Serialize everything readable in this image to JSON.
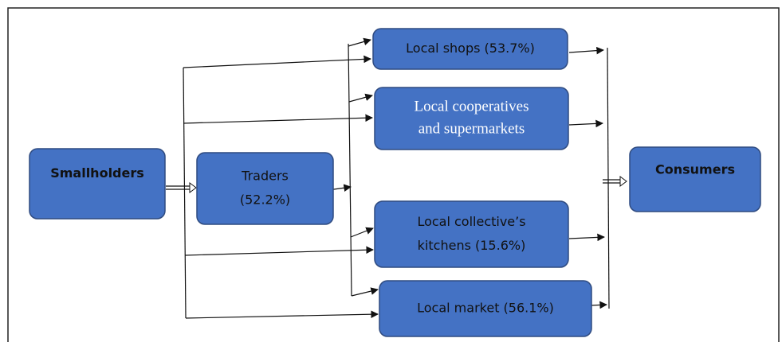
{
  "nodes": [
    {
      "id": "smallholders",
      "lines": [
        "Smallholders"
      ]
    },
    {
      "id": "traders",
      "lines": [
        "Traders",
        "(52.2%)"
      ]
    },
    {
      "id": "shops",
      "lines": [
        "Local shops (53.7%)"
      ]
    },
    {
      "id": "coops",
      "lines": [
        "Local cooperatives",
        "and supermarkets"
      ]
    },
    {
      "id": "kitchens",
      "lines": [
        "Local collective’s",
        "kitchens (15.6%)"
      ]
    },
    {
      "id": "market",
      "lines": [
        "Local market (56.1%)"
      ]
    },
    {
      "id": "consumers",
      "lines": [
        "Consumers"
      ]
    }
  ]
}
